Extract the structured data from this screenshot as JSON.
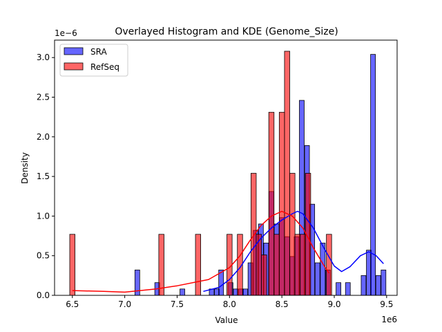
{
  "chart_data": {
    "type": "bar",
    "title": "Overlayed Histogram and KDE (Genome_Size)",
    "xlabel": "Value",
    "ylabel": "Density",
    "x_offset_label": "1e6",
    "y_offset_label": "1e−6",
    "xlim": [
      6.33,
      9.6
    ],
    "ylim": [
      0,
      3.22
    ],
    "xticks": [
      "6.5",
      "7.0",
      "7.5",
      "8.0",
      "8.5",
      "9.0",
      "9.5"
    ],
    "yticks": [
      "0.0",
      "0.5",
      "1.0",
      "1.5",
      "2.0",
      "2.5",
      "3.0"
    ],
    "legend_position": "top-left",
    "series": [
      {
        "name": "SRA",
        "color": "#0000ff",
        "bin_width": 0.046,
        "bins": [
          [
            7.12,
            0.32
          ],
          [
            7.31,
            0.16
          ],
          [
            7.55,
            0.08
          ],
          [
            7.83,
            0.08
          ],
          [
            7.88,
            0.08
          ],
          [
            7.92,
            0.32
          ],
          [
            8.01,
            0.16
          ],
          [
            8.06,
            0.08
          ],
          [
            8.11,
            0.08
          ],
          [
            8.15,
            0.08
          ],
          [
            8.2,
            0.41
          ],
          [
            8.25,
            0.82
          ],
          [
            8.3,
            0.9
          ],
          [
            8.35,
            0.66
          ],
          [
            8.4,
            1.31
          ],
          [
            8.45,
            0.9
          ],
          [
            8.5,
            0.98
          ],
          [
            8.55,
            0.74
          ],
          [
            8.6,
            0.49
          ],
          [
            8.64,
            0.74
          ],
          [
            8.69,
            2.46
          ],
          [
            8.74,
            1.89
          ],
          [
            8.79,
            1.15
          ],
          [
            8.84,
            0.41
          ],
          [
            8.89,
            0.66
          ],
          [
            8.94,
            0.32
          ],
          [
            9.04,
            0.16
          ],
          [
            9.13,
            0.16
          ],
          [
            9.28,
            0.25
          ],
          [
            9.33,
            0.57
          ],
          [
            9.37,
            3.04
          ],
          [
            9.42,
            0.25
          ],
          [
            9.47,
            0.32
          ]
        ],
        "kde": [
          [
            7.75,
            0.05
          ],
          [
            7.9,
            0.1
          ],
          [
            8.0,
            0.2
          ],
          [
            8.1,
            0.35
          ],
          [
            8.2,
            0.55
          ],
          [
            8.3,
            0.72
          ],
          [
            8.4,
            0.85
          ],
          [
            8.5,
            0.95
          ],
          [
            8.6,
            1.03
          ],
          [
            8.65,
            1.06
          ],
          [
            8.7,
            1.03
          ],
          [
            8.8,
            0.85
          ],
          [
            8.9,
            0.6
          ],
          [
            9.0,
            0.37
          ],
          [
            9.07,
            0.3
          ],
          [
            9.15,
            0.36
          ],
          [
            9.25,
            0.5
          ],
          [
            9.33,
            0.55
          ],
          [
            9.4,
            0.5
          ],
          [
            9.47,
            0.4
          ]
        ]
      },
      {
        "name": "RefSeq",
        "color": "#ff0000",
        "bin_width": 0.05,
        "bins": [
          [
            6.5,
            0.77
          ],
          [
            7.35,
            0.77
          ],
          [
            7.7,
            0.77
          ],
          [
            8.0,
            0.77
          ],
          [
            8.1,
            0.77
          ],
          [
            8.23,
            1.54
          ],
          [
            8.28,
            0.77
          ],
          [
            8.33,
            0.51
          ],
          [
            8.4,
            2.31
          ],
          [
            8.45,
            0.77
          ],
          [
            8.5,
            2.31
          ],
          [
            8.55,
            3.08
          ],
          [
            8.6,
            1.54
          ],
          [
            8.65,
            0.77
          ],
          [
            8.7,
            0.77
          ],
          [
            8.75,
            1.54
          ],
          [
            8.95,
            0.77
          ]
        ],
        "kde": [
          [
            6.5,
            0.06
          ],
          [
            6.8,
            0.05
          ],
          [
            7.0,
            0.04
          ],
          [
            7.3,
            0.08
          ],
          [
            7.5,
            0.12
          ],
          [
            7.8,
            0.2
          ],
          [
            8.0,
            0.35
          ],
          [
            8.1,
            0.5
          ],
          [
            8.2,
            0.7
          ],
          [
            8.3,
            0.88
          ],
          [
            8.4,
            1.0
          ],
          [
            8.5,
            1.06
          ],
          [
            8.6,
            1.0
          ],
          [
            8.7,
            0.85
          ],
          [
            8.8,
            0.6
          ],
          [
            8.9,
            0.38
          ],
          [
            8.95,
            0.28
          ]
        ]
      }
    ]
  }
}
